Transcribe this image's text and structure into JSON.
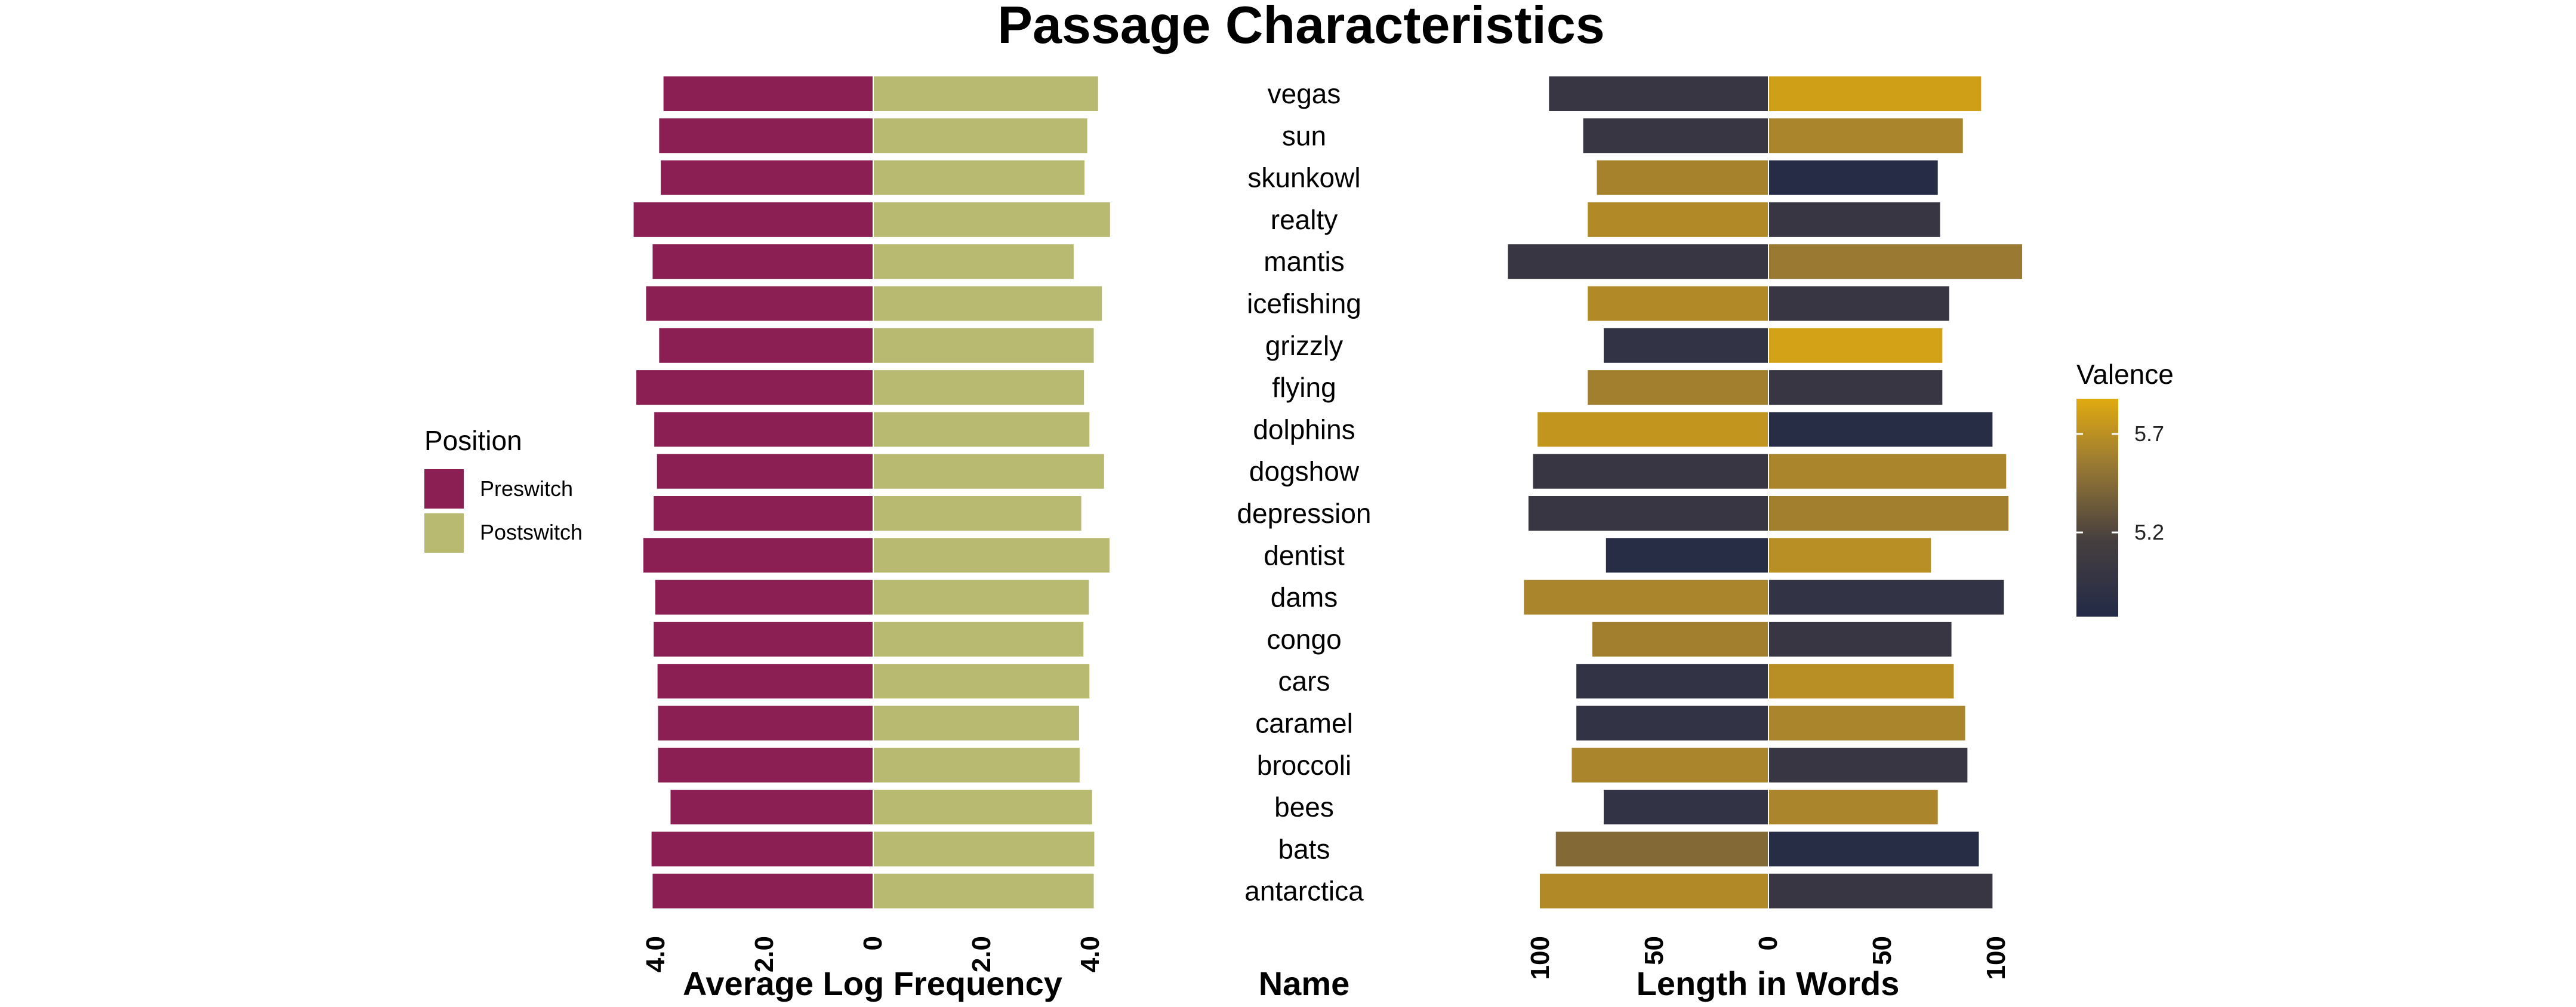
{
  "chart_data": {
    "type": "bar",
    "title": "Passage Characteristics",
    "names": [
      "vegas",
      "sun",
      "skunkowl",
      "realty",
      "mantis",
      "icefishing",
      "grizzly",
      "flying",
      "dolphins",
      "dogshow",
      "depression",
      "dentist",
      "dams",
      "congo",
      "cars",
      "caramel",
      "broccoli",
      "bees",
      "bats",
      "antarctica"
    ],
    "name_axis_title": "Name",
    "frequency_panel": {
      "xlabel": "Average Log Frequency",
      "ticks": [
        "4.0",
        "2.0",
        "0",
        "2.0",
        "4.0"
      ],
      "xlim": [
        -4.0,
        4.0
      ],
      "series": [
        {
          "name": "Preswitch",
          "color": "#8b1f54",
          "values": [
            3.85,
            3.93,
            3.9,
            4.4,
            4.05,
            4.17,
            3.93,
            4.35,
            4.02,
            3.97,
            4.03,
            4.22,
            4.0,
            4.03,
            3.96,
            3.95,
            3.95,
            3.72,
            4.07,
            4.05
          ]
        },
        {
          "name": "Postswitch",
          "color": "#b9ba72",
          "values": [
            4.13,
            3.93,
            3.88,
            4.35,
            3.68,
            4.2,
            4.05,
            3.87,
            3.97,
            4.24,
            3.82,
            4.34,
            3.96,
            3.86,
            3.97,
            3.78,
            3.79,
            4.02,
            4.06,
            4.05
          ]
        }
      ]
    },
    "length_panel": {
      "xlabel": "Length in Words",
      "ticks": [
        "100",
        "50",
        "0",
        "50",
        "100"
      ],
      "xlim": [
        -100,
        100
      ],
      "preswitch_values": [
        96,
        81,
        75,
        79,
        114,
        79,
        72,
        79,
        101,
        103,
        105,
        71,
        107,
        77,
        84,
        84,
        86,
        72,
        93,
        100
      ],
      "postswitch_values": [
        93,
        85,
        74,
        75,
        111,
        79,
        76,
        76,
        98,
        104,
        105,
        71,
        103,
        80,
        81,
        86,
        87,
        74,
        92,
        98
      ],
      "preswitch_valence": [
        5.05,
        5.05,
        5.6,
        5.65,
        5.05,
        5.65,
        5.0,
        5.58,
        5.72,
        5.05,
        5.05,
        4.9,
        5.62,
        5.58,
        5.0,
        5.0,
        5.62,
        5.0,
        5.45,
        5.65
      ],
      "postswitch_valence": [
        5.78,
        5.62,
        4.88,
        5.05,
        5.55,
        5.05,
        5.8,
        5.05,
        4.9,
        5.62,
        5.58,
        5.68,
        5.0,
        5.05,
        5.68,
        5.62,
        5.05,
        5.62,
        4.9,
        5.05
      ]
    },
    "legend": {
      "title": "Position",
      "entries": [
        {
          "label": "Preswitch",
          "color": "#8b1f54"
        },
        {
          "label": "Postswitch",
          "color": "#b9ba72"
        }
      ],
      "placement": "left"
    },
    "colorbar": {
      "title": "Valence",
      "range": [
        4.85,
        5.85
      ],
      "ticks": [
        {
          "value": 5.7,
          "label": "5.7"
        },
        {
          "value": 5.2,
          "label": "5.2"
        }
      ],
      "colors": [
        "#232a47",
        "#463f3f",
        "#9a7a33",
        "#e0aa10"
      ],
      "placement": "right"
    }
  }
}
